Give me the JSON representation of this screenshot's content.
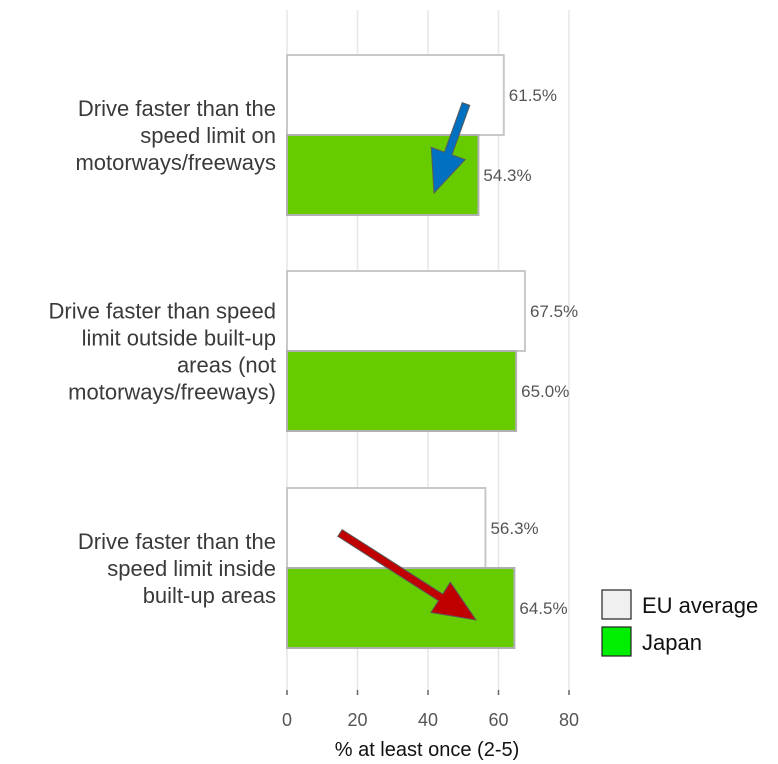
{
  "chart_data": {
    "type": "bar",
    "orientation": "horizontal",
    "categories": [
      [
        "Drive faster than the",
        "speed limit on",
        "motorways/freeways"
      ],
      [
        "Drive faster than speed",
        "limit outside built-up",
        "areas (not",
        "motorways/freeways)"
      ],
      [
        "Drive faster than the",
        "speed limit inside",
        "built-up areas"
      ]
    ],
    "series": [
      {
        "name": "EU average",
        "values": [
          61.5,
          67.5,
          56.3
        ],
        "labels": [
          "61.5%",
          "67.5%",
          "56.3%"
        ],
        "color": "#ffffff",
        "stroke": "#c8c8c8"
      },
      {
        "name": "Japan",
        "values": [
          54.3,
          65.0,
          64.5
        ],
        "labels": [
          "54.3%",
          "65.0%",
          "64.5%"
        ],
        "color": "#66cc00",
        "stroke": "#b0b0b0"
      }
    ],
    "xlabel": "% at least once (2-5)",
    "xlim": [
      0,
      80
    ],
    "ticks": [
      0,
      20,
      40,
      60,
      80
    ],
    "tick_labels": [
      "0",
      "20",
      "40",
      "60",
      "80"
    ],
    "grid": true,
    "legend": {
      "placement": "bottom-right",
      "items": [
        {
          "name": "EU average",
          "swatch": "#f0f0f0"
        },
        {
          "name": "Japan",
          "swatch": "#00ee00"
        }
      ]
    },
    "annotations": [
      {
        "type": "arrow",
        "color": "#0070c0",
        "direction": "down-left",
        "category_index": 0
      },
      {
        "type": "arrow",
        "color": "#c00000",
        "direction": "down-right",
        "category_index": 2
      }
    ]
  }
}
